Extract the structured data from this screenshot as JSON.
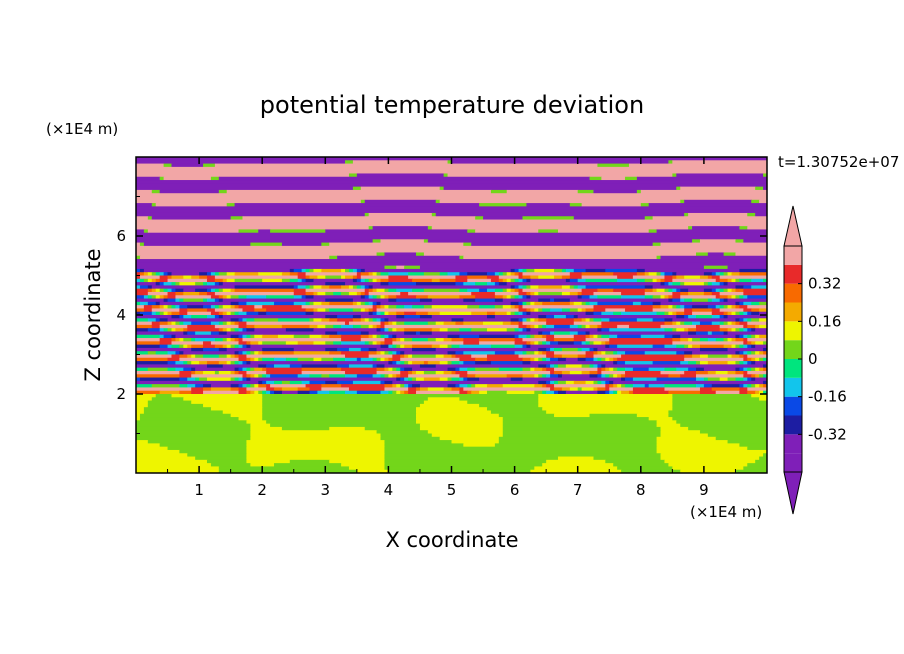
{
  "chart_data": {
    "type": "heatmap",
    "title": "potential temperature deviation",
    "xlabel": "X coordinate",
    "ylabel": "Z coordinate",
    "x_unit": "(×1E4 m)",
    "y_unit": "(×1E4 m)",
    "time_label": "t=1.30752e+07",
    "xlim": [
      0,
      10
    ],
    "ylim": [
      0,
      8
    ],
    "x_ticks": [
      "1",
      "2",
      "3",
      "4",
      "5",
      "6",
      "7",
      "8",
      "9"
    ],
    "y_ticks": [
      "2",
      "4",
      "6"
    ],
    "colorbar": {
      "levels": [
        -0.48,
        -0.4,
        -0.32,
        -0.24,
        -0.16,
        -0.08,
        0,
        0.08,
        0.16,
        0.24,
        0.32,
        0.4,
        0.48
      ],
      "labels": [
        "0.32",
        "0.16",
        "0",
        "-0.16",
        "-0.32"
      ],
      "label_values": [
        0.32,
        0.16,
        0,
        -0.16,
        -0.32
      ],
      "colors_low_to_high": [
        "#7f1fb8",
        "#1d1da2",
        "#0a49e6",
        "#12c5ec",
        "#00e57e",
        "#73d61a",
        "#eef500",
        "#f4aa00",
        "#f86a00",
        "#e82a2a",
        "#f2a6a6"
      ],
      "extend": "both"
    },
    "regions": [
      {
        "z_range": [
          0,
          2
        ],
        "description": "lower layer mixed green and yellow-green eddies, values near 0"
      },
      {
        "z_range": [
          2,
          5.2
        ],
        "description": "thin horizontal alternating bands spanning full range of values"
      },
      {
        "z_range": [
          5.2,
          8
        ],
        "description": "broad alternating pink (high) and purple (low) horizontal bands"
      }
    ]
  }
}
